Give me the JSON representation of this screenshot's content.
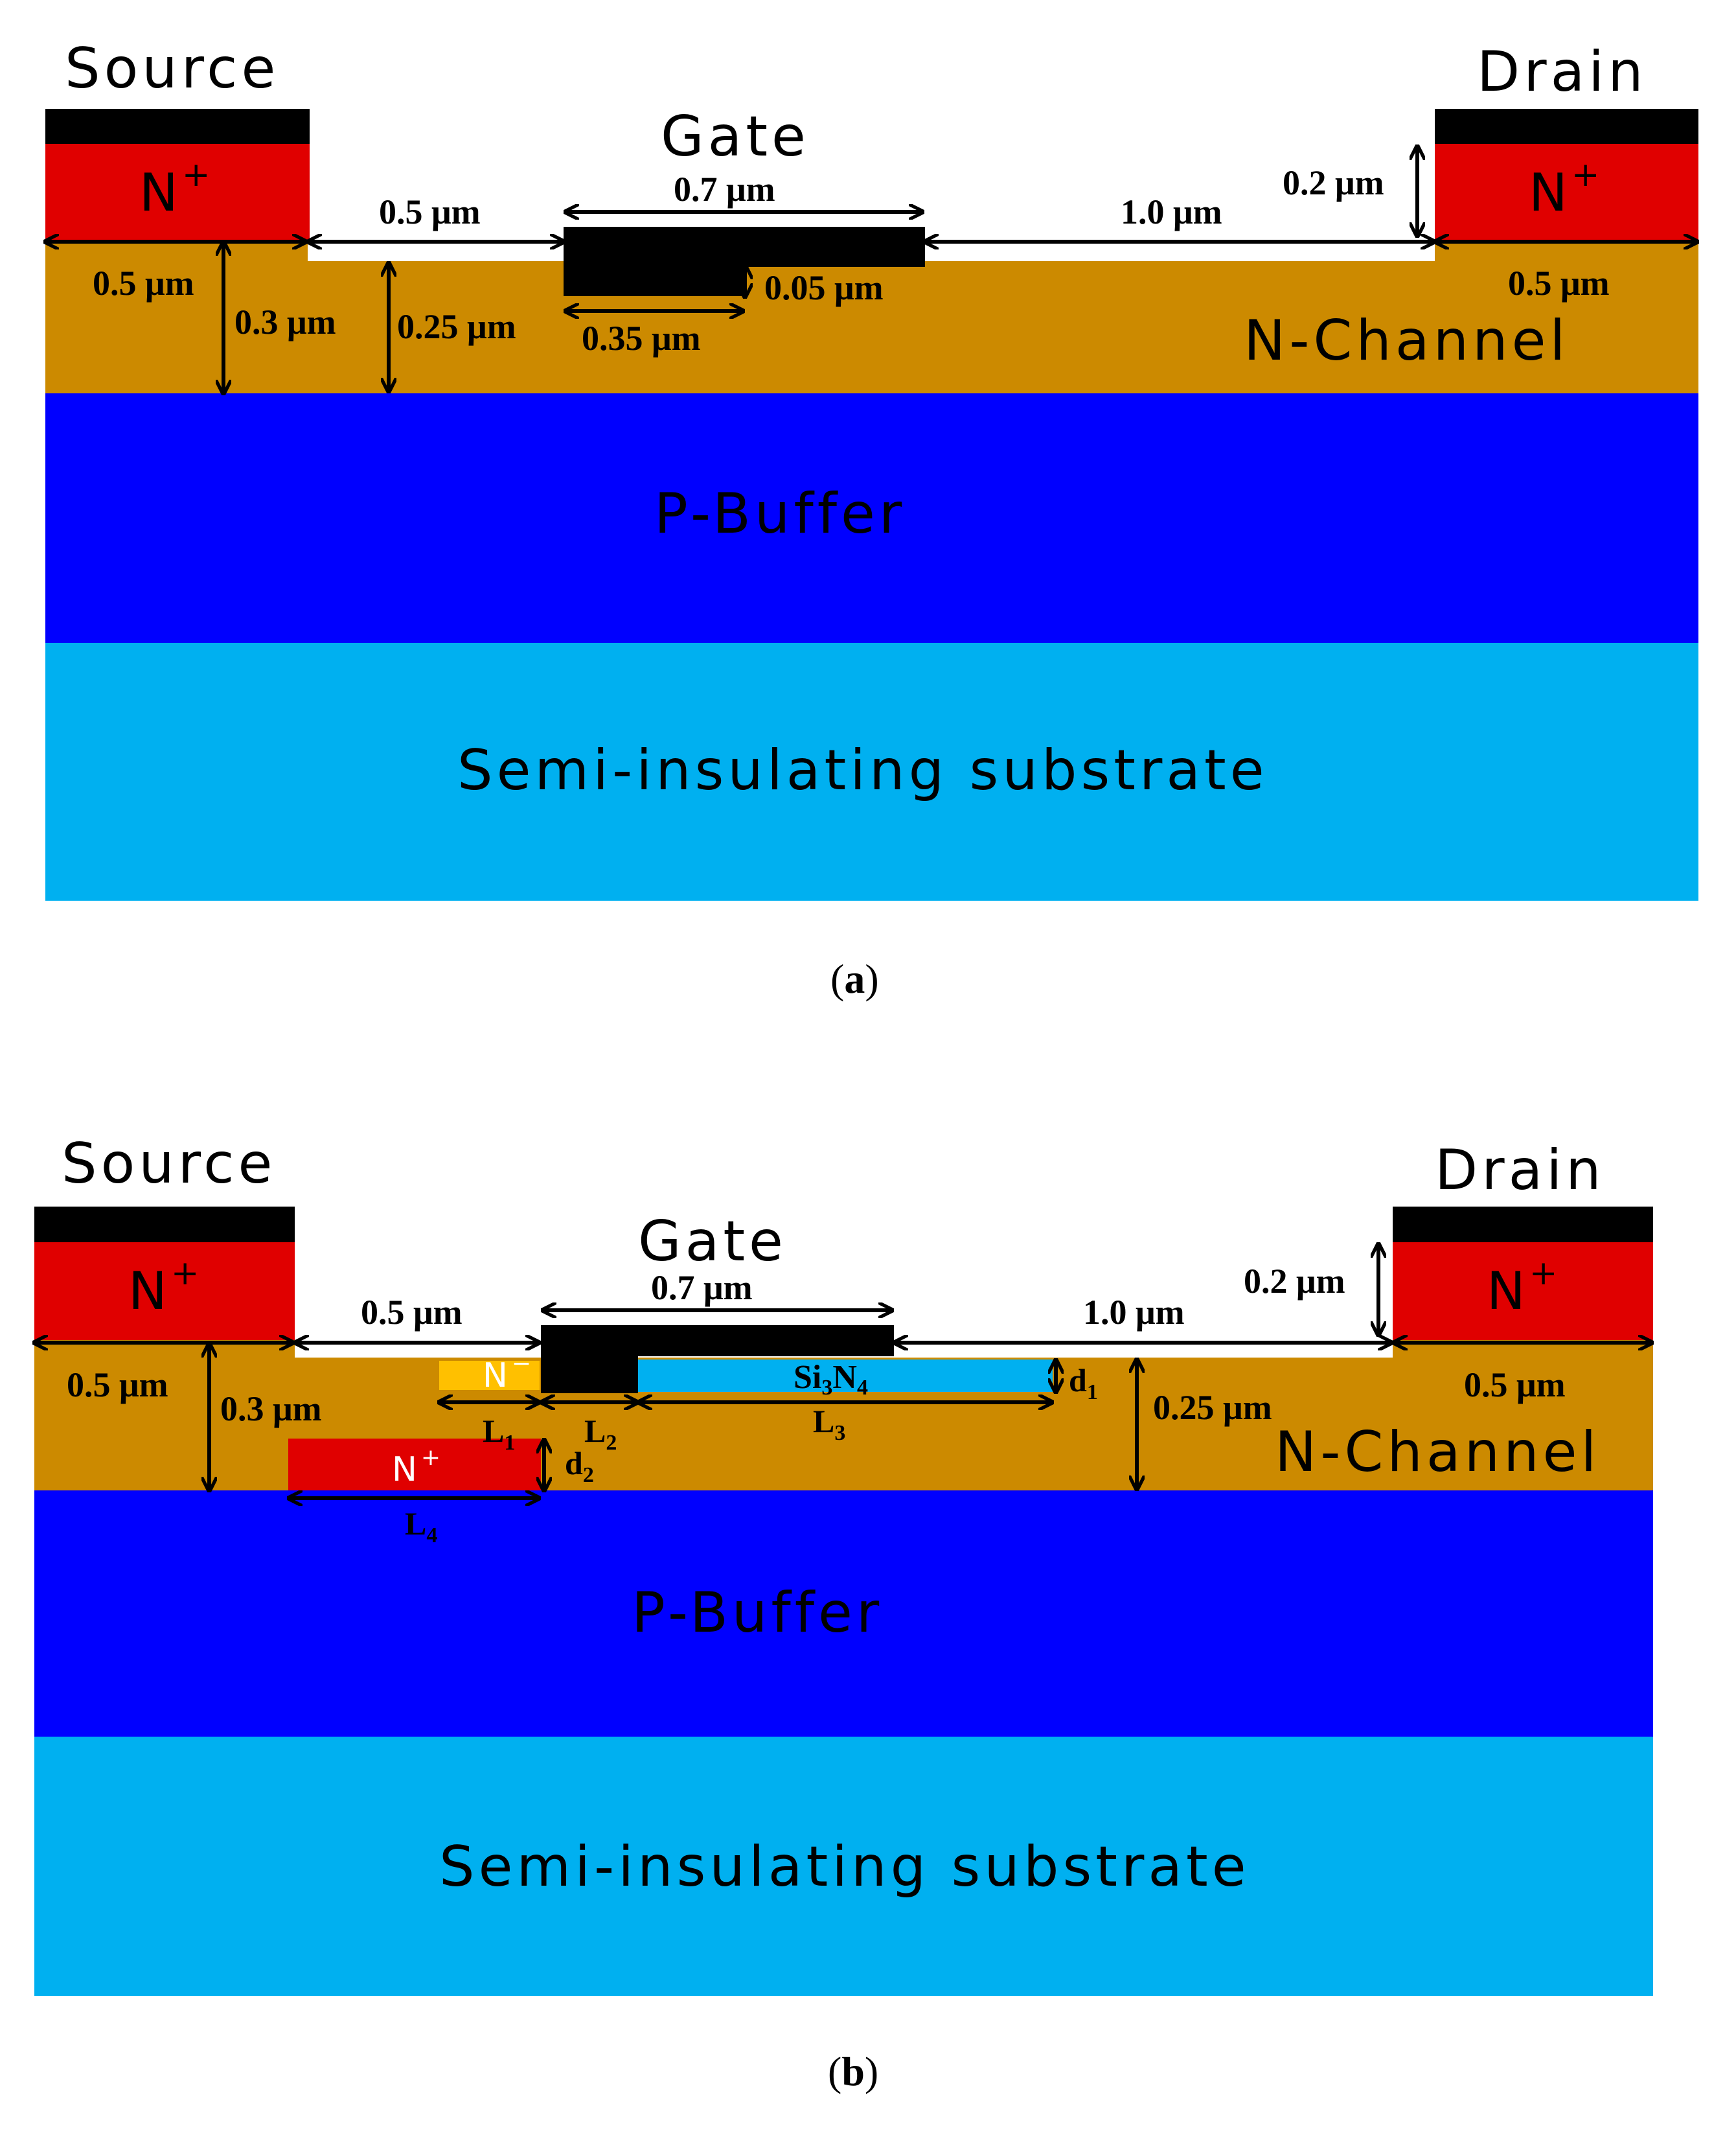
{
  "colors": {
    "contact": "#000000",
    "n_plus": "#e00000",
    "channel": "#cc8a00",
    "p_buffer": "#0000ff",
    "substrate": "#00b0f0",
    "gate": "#000000",
    "n_minus": "#ffc000",
    "si3n4": "#00b0f0"
  },
  "figure_a": {
    "source": "Source",
    "drain": "Drain",
    "gate": "Gate",
    "n_plus_left": "N",
    "n_plus_left_sup": "+",
    "n_plus_right": "N",
    "n_plus_right_sup": "+",
    "n_channel": "N-Channel",
    "p_buffer": "P-Buffer",
    "substrate": "Semi-insulating substrate",
    "dim_source_width": "0.5 μm",
    "dim_channel_depth": "0.3 μm",
    "dim_recess_depth": "0.25 μm",
    "dim_source_gate": "0.5 μm",
    "dim_gate_top": "0.7 μm",
    "dim_gate_bottom": "0.35 μm",
    "dim_gate_recess": "0.05 μm",
    "dim_gate_drain": "1.0 μm",
    "dim_contact_height": "0.2 μm",
    "dim_drain_width": "0.5 μm",
    "caption_open": "(",
    "caption_letter": "a",
    "caption_close": ")"
  },
  "figure_b": {
    "source": "Source",
    "drain": "Drain",
    "gate": "Gate",
    "n_plus_left": "N",
    "n_plus_left_sup": "+",
    "n_plus_right": "N",
    "n_plus_right_sup": "+",
    "n_minus": "N",
    "n_minus_sup": "−",
    "buried_n_plus": "N",
    "buried_n_plus_sup": "+",
    "si3n4_a": "Si",
    "si3n4_sub1": "3",
    "si3n4_b": "N",
    "si3n4_sub2": "4",
    "n_channel": "N-Channel",
    "p_buffer": "P-Buffer",
    "substrate": "Semi-insulating substrate",
    "dim_source_width": "0.5 μm",
    "dim_channel_depth": "0.3 μm",
    "dim_source_gate": "0.5 μm",
    "dim_gate_top": "0.7 μm",
    "dim_gate_drain": "1.0 μm",
    "dim_contact_height": "0.2 μm",
    "dim_drain_width": "0.5 μm",
    "dim_recess_depth": "0.25 μm",
    "L1": "L",
    "L1_sub": "1",
    "L2": "L",
    "L2_sub": "2",
    "L3": "L",
    "L3_sub": "3",
    "L4": "L",
    "L4_sub": "4",
    "d1": "d",
    "d1_sub": "1",
    "d2": "d",
    "d2_sub": "2",
    "caption_open": "(",
    "caption_letter": "b",
    "caption_close": ")"
  }
}
